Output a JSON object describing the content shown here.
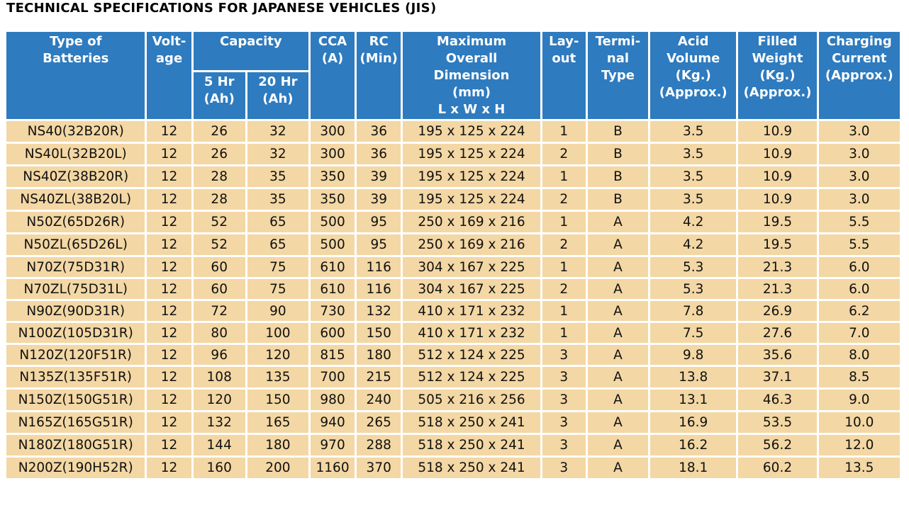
{
  "title": "TECHNICAL SPECIFICATIONS FOR JAPANESE VEHICLES (JIS)",
  "headers": {
    "type": "Type of\nBatteries",
    "voltage": "Volt-\nage",
    "capacity": "Capacity",
    "cap_5hr": "5 Hr\n(Ah)",
    "cap_20hr": "20 Hr\n(Ah)",
    "cca": "CCA\n(A)",
    "rc": "RC\n(Min)",
    "dimension": "Maximum\nOverall\nDimension\n(mm)\nL x W x H",
    "layout": "Lay-\nout",
    "terminal": "Termi-\nnal\nType",
    "acid": "Acid\nVolume\n(Kg.)\n(Approx.)",
    "weight": "Filled\nWeight\n(Kg.)\n(Approx.)",
    "charging": "Charging\nCurrent\n(Approx.)"
  },
  "rows": [
    [
      "NS40(32B20R)",
      "12",
      "26",
      "32",
      "300",
      "36",
      "195 x 125 x 224",
      "1",
      "B",
      "3.5",
      "10.9",
      "3.0"
    ],
    [
      "NS40L(32B20L)",
      "12",
      "26",
      "32",
      "300",
      "36",
      "195 x 125 x 224",
      "2",
      "B",
      "3.5",
      "10.9",
      "3.0"
    ],
    [
      "NS40Z(38B20R)",
      "12",
      "28",
      "35",
      "350",
      "39",
      "195 x 125 x 224",
      "1",
      "B",
      "3.5",
      "10.9",
      "3.0"
    ],
    [
      "NS40ZL(38B20L)",
      "12",
      "28",
      "35",
      "350",
      "39",
      "195 x 125 x 224",
      "2",
      "B",
      "3.5",
      "10.9",
      "3.0"
    ],
    [
      "N50Z(65D26R)",
      "12",
      "52",
      "65",
      "500",
      "95",
      "250 x 169 x 216",
      "1",
      "A",
      "4.2",
      "19.5",
      "5.5"
    ],
    [
      "N50ZL(65D26L)",
      "12",
      "52",
      "65",
      "500",
      "95",
      "250 x 169 x 216",
      "2",
      "A",
      "4.2",
      "19.5",
      "5.5"
    ],
    [
      "N70Z(75D31R)",
      "12",
      "60",
      "75",
      "610",
      "116",
      "304 x 167 x 225",
      "1",
      "A",
      "5.3",
      "21.3",
      "6.0"
    ],
    [
      "N70ZL(75D31L)",
      "12",
      "60",
      "75",
      "610",
      "116",
      "304 x 167 x 225",
      "2",
      "A",
      "5.3",
      "21.3",
      "6.0"
    ],
    [
      "N90Z(90D31R)",
      "12",
      "72",
      "90",
      "730",
      "132",
      "410 x 171 x 232",
      "1",
      "A",
      "7.8",
      "26.9",
      "6.2"
    ],
    [
      "N100Z(105D31R)",
      "12",
      "80",
      "100",
      "600",
      "150",
      "410 x 171 x 232",
      "1",
      "A",
      "7.5",
      "27.6",
      "7.0"
    ],
    [
      "N120Z(120F51R)",
      "12",
      "96",
      "120",
      "815",
      "180",
      "512 x 124 x 225",
      "3",
      "A",
      "9.8",
      "35.6",
      "8.0"
    ],
    [
      "N135Z(135F51R)",
      "12",
      "108",
      "135",
      "700",
      "215",
      "512 x 124 x 225",
      "3",
      "A",
      "13.8",
      "37.1",
      "8.5"
    ],
    [
      "N150Z(150G51R)",
      "12",
      "120",
      "150",
      "980",
      "240",
      "505 x 216 x 256",
      "3",
      "A",
      "13.1",
      "46.3",
      "9.0"
    ],
    [
      "N165Z(165G51R)",
      "12",
      "132",
      "165",
      "940",
      "265",
      "518 x 250 x 241",
      "3",
      "A",
      "16.9",
      "53.5",
      "10.0"
    ],
    [
      "N180Z(180G51R)",
      "12",
      "144",
      "180",
      "970",
      "288",
      "518 x 250 x 241",
      "3",
      "A",
      "16.2",
      "56.2",
      "12.0"
    ],
    [
      "N200Z(190H52R)",
      "12",
      "160",
      "200",
      "1160",
      "370",
      "518 x 250 x 241",
      "3",
      "A",
      "18.1",
      "60.2",
      "13.5"
    ]
  ],
  "colors": {
    "header_bg": "#2e7bbf",
    "cell_bg": "#f3d7a4"
  }
}
